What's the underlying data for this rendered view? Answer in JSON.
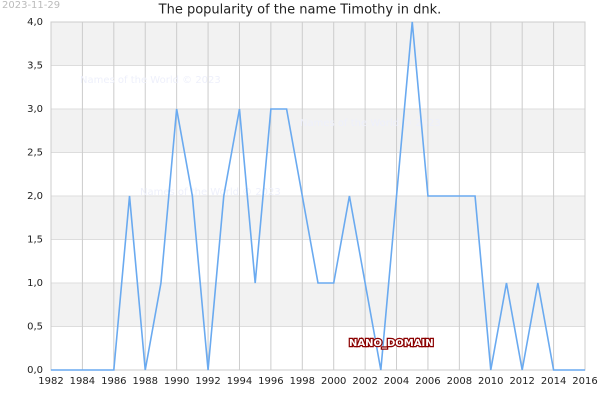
{
  "chart_data": {
    "type": "line",
    "title": "The popularity of the name Timothy in dnk.",
    "date_stamp": "2023-11-29",
    "watermarks": [
      "Names of the World © 2023",
      "Names of the World © 2023",
      "Names of the World © 2023"
    ],
    "label": "NANO_DOMAIN",
    "x": [
      1982,
      1983,
      1984,
      1985,
      1986,
      1987,
      1988,
      1989,
      1990,
      1991,
      1992,
      1993,
      1994,
      1995,
      1996,
      1997,
      1998,
      1999,
      2000,
      2001,
      2002,
      2003,
      2004,
      2005,
      2006,
      2007,
      2008,
      2009,
      2010,
      2011,
      2012,
      2013,
      2014,
      2015,
      2016
    ],
    "series": [
      {
        "color": "#6aaaf0",
        "values": [
          0,
          0,
          0,
          0,
          0,
          2,
          0,
          1,
          3,
          2,
          0,
          2,
          3,
          1,
          3,
          3,
          2,
          1,
          1,
          2,
          1,
          0,
          2,
          4,
          2,
          2,
          2,
          2,
          0,
          1,
          0,
          1,
          0,
          0,
          0
        ]
      }
    ],
    "xlim": [
      1982,
      2016
    ],
    "xticks": [
      1982,
      1984,
      1986,
      1988,
      1990,
      1992,
      1994,
      1996,
      1998,
      2000,
      2002,
      2004,
      2006,
      2008,
      2010,
      2012,
      2014,
      2016
    ],
    "ylim": [
      0,
      4
    ],
    "yticks": [
      {
        "value": 0,
        "label": "0,0"
      },
      {
        "value": 0.5,
        "label": "0,5"
      },
      {
        "value": 1,
        "label": "1,0"
      },
      {
        "value": 1.5,
        "label": "1,5"
      },
      {
        "value": 2,
        "label": "2,0"
      },
      {
        "value": 2.5,
        "label": "2,5"
      },
      {
        "value": 3,
        "label": "3,0"
      },
      {
        "value": 3.5,
        "label": "3,5"
      },
      {
        "value": 4,
        "label": "4,0"
      }
    ],
    "grid": true
  }
}
